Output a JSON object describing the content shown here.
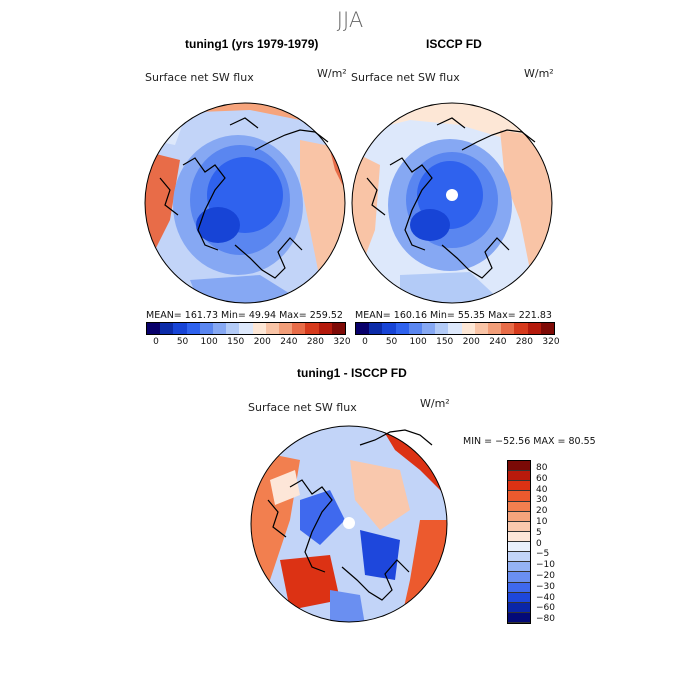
{
  "season": "JJA",
  "panels": [
    {
      "title": "tuning1 (yrs 1979-1979)",
      "variable": "Surface net SW flux",
      "units": "W/m²",
      "stats": "MEAN= 161.73   Min=  49.94   Max= 259.52"
    },
    {
      "title": "ISCCP FD",
      "variable": "Surface net SW flux",
      "units": "W/m²",
      "stats": "MEAN= 160.16   Min=  55.35   Max= 221.83"
    }
  ],
  "abs_colorbar": {
    "tick_labels": [
      "0",
      "50",
      "100",
      "150",
      "200",
      "240",
      "280",
      "320"
    ],
    "colors": [
      "#08006b",
      "#0b2ba8",
      "#1744d6",
      "#2f62ee",
      "#5a86f0",
      "#86a8f3",
      "#b3cbf7",
      "#dde8fb",
      "#fde7d6",
      "#f9c4a6",
      "#f29e79",
      "#e86c48",
      "#d63a1c",
      "#b41a0c",
      "#7e0a06"
    ]
  },
  "diff_panel": {
    "title": "tuning1 - ISCCP FD",
    "variable": "Surface net SW flux",
    "units": "W/m²",
    "stats": "MIN = −52.56  MAX =  80.55"
  },
  "diff_colorbar": {
    "labels": [
      "80",
      "60",
      "40",
      "30",
      "20",
      "10",
      "5",
      "0",
      "−5",
      "−10",
      "−20",
      "−30",
      "−40",
      "−60",
      "−80"
    ],
    "colors": [
      "#7a0a06",
      "#b81a0b",
      "#dc3214",
      "#ec5a2e",
      "#f27f4f",
      "#f6a47c",
      "#f9c8ad",
      "#fde6d8",
      "#e9f0fc",
      "#c2d4f8",
      "#94b2f4",
      "#6a8ff1",
      "#3f69ee",
      "#1e47dc",
      "#0a26a8",
      "#030a78"
    ]
  }
}
